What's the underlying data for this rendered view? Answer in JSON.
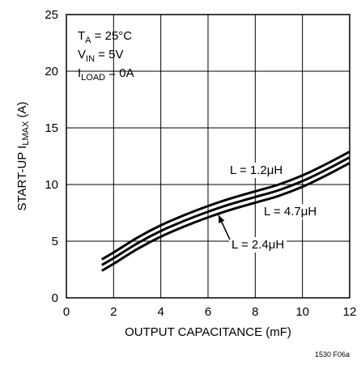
{
  "chart_data": {
    "type": "line",
    "title": "",
    "xlabel": "OUTPUT CAPACITANCE (mF)",
    "ylabel": {
      "main": "START-UP I",
      "sub": "LMAX",
      "unit": " (A)"
    },
    "xlim": [
      0,
      12
    ],
    "ylim": [
      0,
      25
    ],
    "xticks": [
      0,
      2,
      4,
      6,
      8,
      10,
      12
    ],
    "yticks": [
      0,
      5,
      10,
      15,
      20,
      25
    ],
    "grid": true,
    "conditions": [
      {
        "main": "T",
        "sub": "A",
        "rest": " = 25°C"
      },
      {
        "main": "V",
        "sub": "IN",
        "rest": " = 5V"
      },
      {
        "main": "I",
        "sub": "LOAD",
        "rest": " = 0A"
      }
    ],
    "series": [
      {
        "name": "L = 1.2μH",
        "x": [
          1.5,
          2,
          3,
          4,
          5,
          6,
          7,
          8,
          9,
          10,
          11,
          12
        ],
        "y": [
          3.4,
          4.0,
          5.3,
          6.4,
          7.3,
          8.1,
          8.8,
          9.4,
          10.0,
          10.8,
          11.8,
          12.9
        ]
      },
      {
        "name": "L = 4.7μH",
        "x": [
          1.5,
          2,
          3,
          4,
          5,
          6,
          7,
          8,
          9,
          10,
          11,
          12
        ],
        "y": [
          2.9,
          3.5,
          4.8,
          5.9,
          6.8,
          7.6,
          8.3,
          8.9,
          9.5,
          10.3,
          11.3,
          12.4
        ]
      },
      {
        "name": "L = 2.4μH",
        "x": [
          1.5,
          2,
          3,
          4,
          5,
          6,
          7,
          8,
          9,
          10,
          11,
          12
        ],
        "y": [
          2.4,
          3.0,
          4.3,
          5.4,
          6.3,
          7.1,
          7.8,
          8.4,
          9.0,
          9.8,
          10.8,
          11.9
        ]
      }
    ]
  },
  "figure_id": "1530 F06a"
}
